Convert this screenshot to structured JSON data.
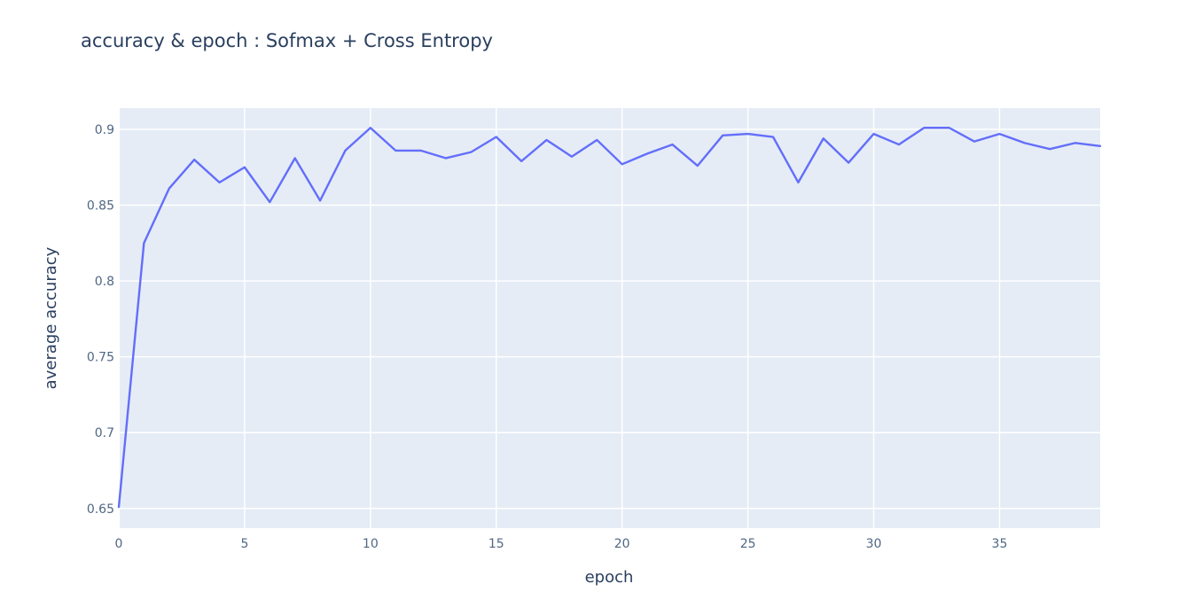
{
  "chart_data": {
    "type": "line",
    "title": "accuracy & epoch : Sofmax + Cross Entropy",
    "xlabel": "epoch",
    "ylabel": "average accuracy",
    "xlim": [
      0,
      39
    ],
    "ylim": [
      0.637,
      0.914
    ],
    "x_ticks": [
      0,
      5,
      10,
      15,
      20,
      25,
      30,
      35
    ],
    "y_ticks": [
      0.65,
      0.7,
      0.75,
      0.8,
      0.85,
      0.9
    ],
    "y_tick_labels": [
      "0.65",
      "0.7",
      "0.75",
      "0.8",
      "0.85",
      "0.9"
    ],
    "grid": true,
    "legend": "none",
    "series": [
      {
        "color": "#636efa",
        "x": [
          0,
          1,
          2,
          3,
          4,
          5,
          6,
          7,
          8,
          9,
          10,
          11,
          12,
          13,
          14,
          15,
          16,
          17,
          18,
          19,
          20,
          21,
          22,
          23,
          24,
          25,
          26,
          27,
          28,
          29,
          30,
          31,
          32,
          33,
          34,
          35,
          36,
          37,
          38,
          39
        ],
        "values": [
          0.651,
          0.825,
          0.861,
          0.88,
          0.865,
          0.875,
          0.852,
          0.881,
          0.853,
          0.886,
          0.901,
          0.886,
          0.886,
          0.881,
          0.885,
          0.895,
          0.879,
          0.893,
          0.882,
          0.893,
          0.877,
          0.884,
          0.89,
          0.876,
          0.896,
          0.897,
          0.895,
          0.865,
          0.894,
          0.878,
          0.897,
          0.89,
          0.901,
          0.901,
          0.892,
          0.897,
          0.891,
          0.887,
          0.891,
          0.889
        ]
      }
    ]
  }
}
